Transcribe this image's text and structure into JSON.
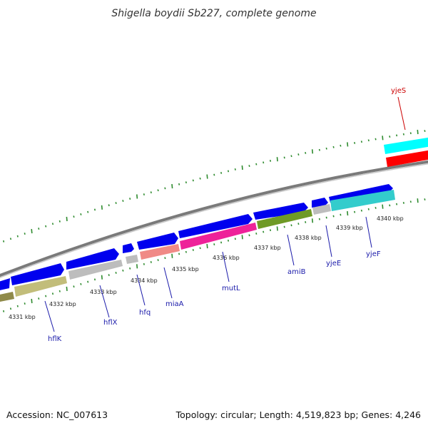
{
  "title": "Shigella boydii Sb227, complete genome",
  "footer": {
    "accession": "Accession: NC_007613",
    "summary": "Topology: circular; Length: 4,519,823 bp; Genes: 4,246"
  },
  "colors": {
    "cds_blue": "#0000ee",
    "label_blue": "#1a1aaa",
    "label_red": "#cc0000",
    "ruler_green": "#2e8b2e",
    "backbone": "#8a8a8a",
    "gene_gray": "#bdbdbd",
    "hflK_olive": "#c2bd7a",
    "miaA_salmon": "#f08a86",
    "mutL_magenta": "#ee2299",
    "amiB_green": "#6f9a26",
    "yjeF_cyan": "#33cccc",
    "yjeS_cyan": "#00ffff",
    "yjeS_red": "#ff0000"
  },
  "ruler": {
    "unit": "kbp",
    "labels": [
      "4331 kbp",
      "4332 kbp",
      "4333 kbp",
      "4334 kbp",
      "4335 kbp",
      "4336 kbp",
      "4337 kbp",
      "4338 kbp",
      "4339 kbp",
      "4340 kbp"
    ]
  },
  "genes": [
    "hflK",
    "hflX",
    "hfq",
    "miaA",
    "mutL",
    "amiB",
    "yjeE",
    "yjeF",
    "yjeS"
  ]
}
